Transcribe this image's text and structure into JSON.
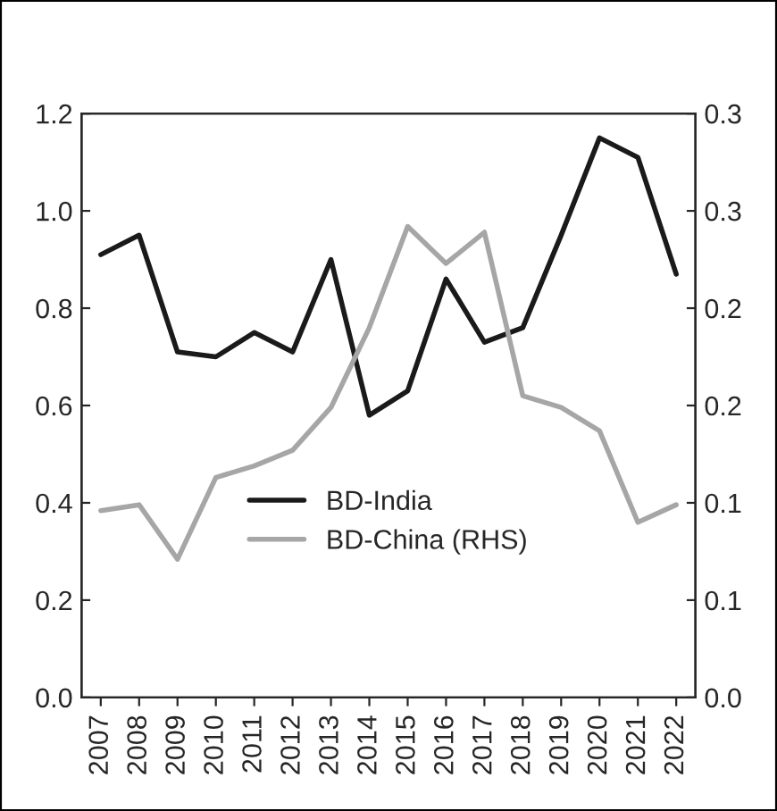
{
  "chart_data": {
    "type": "line",
    "categories": [
      "2007",
      "2008",
      "2009",
      "2010",
      "2011",
      "2012",
      "2013",
      "2014",
      "2015",
      "2016",
      "2017",
      "2018",
      "2019",
      "2020",
      "2021",
      "2022"
    ],
    "series": [
      {
        "name": "BD-India",
        "color": "#1a1a1a",
        "values": [
          0.91,
          0.95,
          0.71,
          0.7,
          0.75,
          0.71,
          0.9,
          0.58,
          0.63,
          0.86,
          0.73,
          0.76,
          0.95,
          1.15,
          1.11,
          0.87
        ]
      },
      {
        "name": "BD-China (RHS)",
        "color": "#a6a6a6",
        "axis": "y2",
        "values": [
          0.096,
          0.099,
          0.071,
          0.113,
          0.119,
          0.127,
          0.149,
          0.19,
          0.242,
          0.223,
          0.239,
          0.155,
          0.149,
          0.137,
          0.09,
          0.099
        ]
      }
    ],
    "ylim": [
      0,
      1.2
    ],
    "yticks": [
      {
        "value": 0,
        "label": "0.0"
      },
      0.2,
      0.4,
      0.6,
      0.8,
      {
        "value": 1,
        "label": "1.0"
      },
      1.2
    ],
    "y2lim": [
      0,
      0.3
    ],
    "y2ticks": [
      {
        "value": 0,
        "label": "0.0"
      },
      {
        "value": 0.05,
        "label": "0.1"
      },
      {
        "value": 0.1,
        "label": "0.1"
      },
      {
        "value": 0.15,
        "label": "0.2"
      },
      {
        "value": 0.2,
        "label": "0.2"
      },
      {
        "value": 0.25,
        "label": "0.3"
      },
      {
        "value": 0.3,
        "label": "0.3"
      }
    ],
    "legend": "center",
    "grid": false,
    "marker": "none",
    "line_style": "solid"
  }
}
